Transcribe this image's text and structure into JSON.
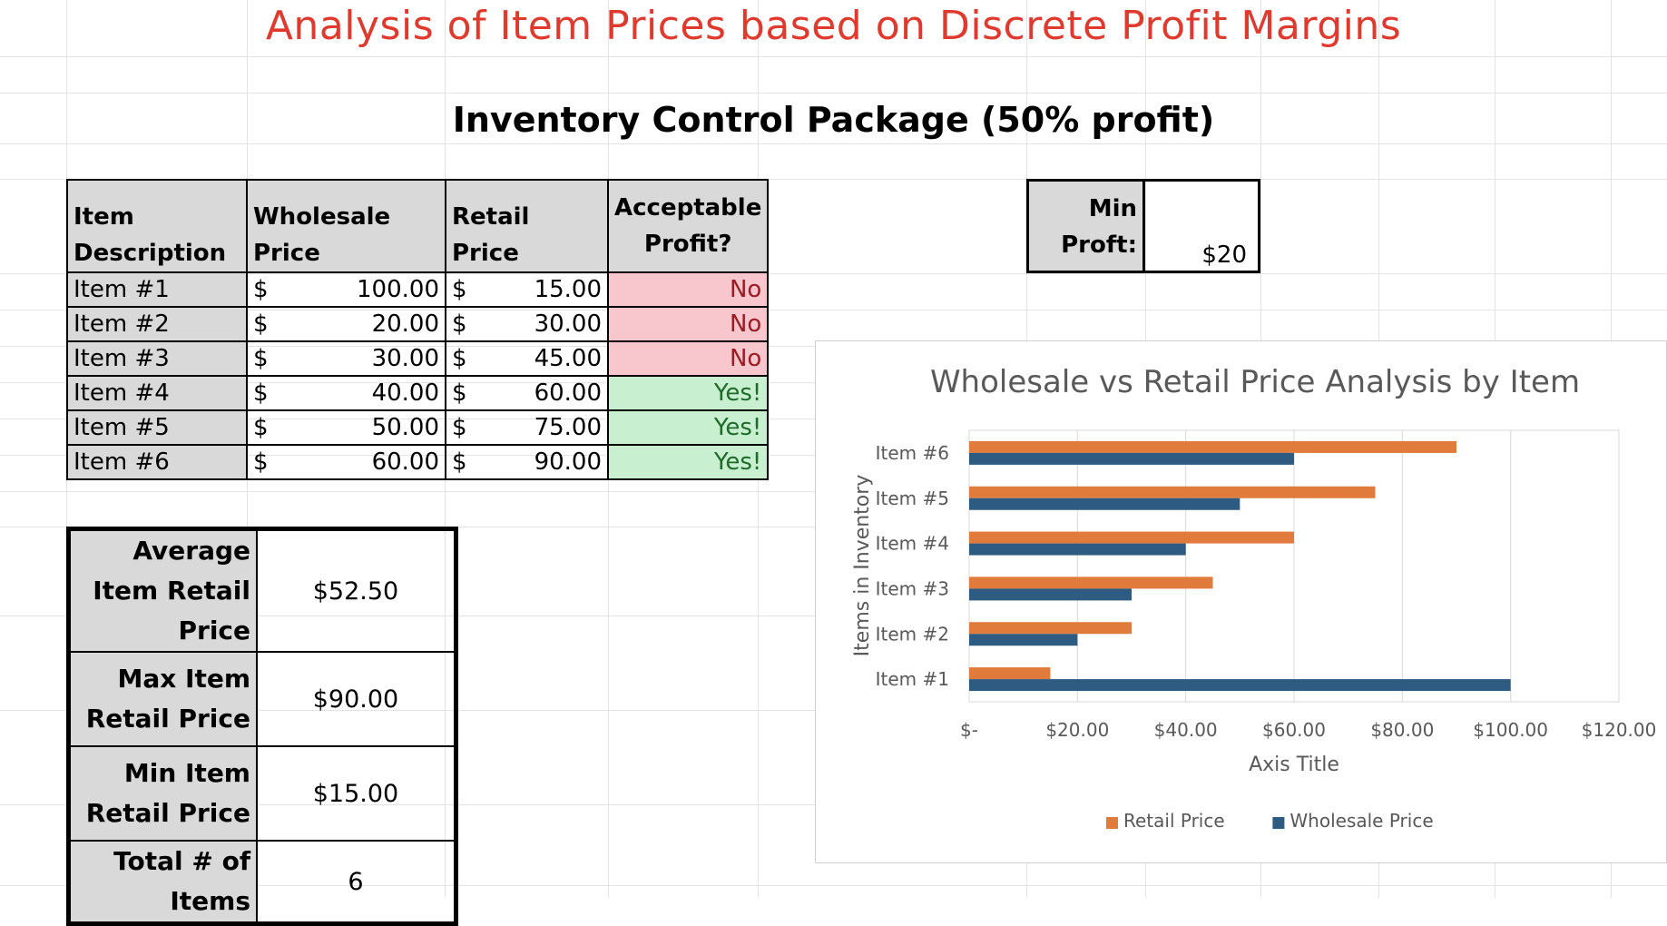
{
  "titles": {
    "main": "Analysis of Item Prices based on Discrete Profit Margins",
    "sub": "Inventory Control Package (50% profit)"
  },
  "table": {
    "headers": {
      "item": "Item Description",
      "wholesale": "Wholesale Price",
      "retail": "Retail Price",
      "profit": "Acceptable Profit?"
    },
    "currency_symbol": "$",
    "rows": [
      {
        "item": "Item #1",
        "wholesale": "100.00",
        "retail": "15.00",
        "profit": "No"
      },
      {
        "item": "Item #2",
        "wholesale": "20.00",
        "retail": "30.00",
        "profit": "No"
      },
      {
        "item": "Item #3",
        "wholesale": "30.00",
        "retail": "45.00",
        "profit": "No"
      },
      {
        "item": "Item #4",
        "wholesale": "40.00",
        "retail": "60.00",
        "profit": "Yes!"
      },
      {
        "item": "Item #5",
        "wholesale": "50.00",
        "retail": "75.00",
        "profit": "Yes!"
      },
      {
        "item": "Item #6",
        "wholesale": "60.00",
        "retail": "90.00",
        "profit": "Yes!"
      }
    ]
  },
  "min_profit": {
    "label": "Min Proft:",
    "value": "$20"
  },
  "stats": [
    {
      "label": "Average Item Retail Price",
      "value": "$52.50"
    },
    {
      "label": "Max Item Retail Price",
      "value": "$90.00"
    },
    {
      "label": "Min Item Retail Price",
      "value": "$15.00"
    },
    {
      "label": "Total # of Items",
      "value": "6"
    }
  ],
  "colors": {
    "title": "#e03a2e",
    "retail": "#e07b3c",
    "wholesale": "#2e5b82",
    "no_bg": "#f8c7ce",
    "yes_bg": "#c8efcf"
  },
  "chart_data": {
    "type": "bar",
    "orientation": "horizontal",
    "title": "Wholesale vs Retail Price Analysis by Item",
    "xlabel": "Axis Title",
    "ylabel": "Items in Inventory",
    "categories": [
      "Item #1",
      "Item #2",
      "Item #3",
      "Item #4",
      "Item #5",
      "Item #6"
    ],
    "series": [
      {
        "name": "Retail Price",
        "values": [
          15,
          30,
          45,
          60,
          75,
          90
        ]
      },
      {
        "name": "Wholesale Price",
        "values": [
          100,
          20,
          30,
          40,
          50,
          60
        ]
      }
    ],
    "xlim": [
      0,
      120
    ],
    "xticks": [
      "$-",
      "$20.00",
      "$40.00",
      "$60.00",
      "$80.00",
      "$100.00",
      "$120.00"
    ],
    "grid": true,
    "legend": "bottom"
  }
}
